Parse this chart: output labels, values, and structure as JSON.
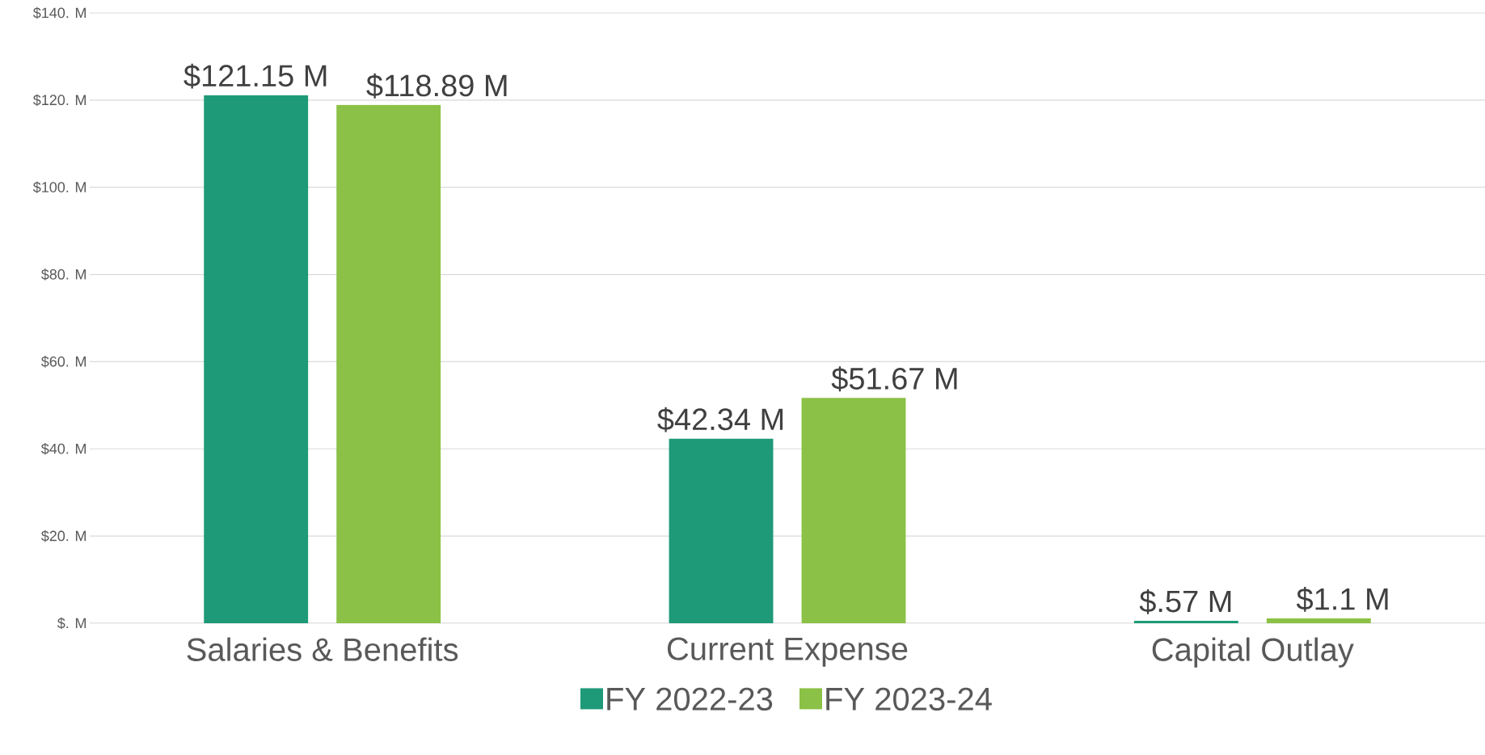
{
  "chart_data": {
    "type": "bar",
    "categories": [
      "Salaries & Benefits",
      "Current Expense",
      "Capital Outlay"
    ],
    "series": [
      {
        "name": "FY 2022-23",
        "color": "#1e9a78",
        "values": [
          121.15,
          42.34,
          0.57
        ],
        "value_labels": [
          "$121.15 M",
          "$42.34 M",
          "$.57 M"
        ]
      },
      {
        "name": "FY 2023-24",
        "color": "#8bc146",
        "values": [
          118.89,
          51.67,
          1.1
        ],
        "value_labels": [
          "$118.89 M",
          "$51.67 M",
          "$1.1 M"
        ]
      }
    ],
    "ylim": [
      0,
      140
    ],
    "yticks": [
      {
        "value": 0,
        "label": "$. M"
      },
      {
        "value": 20,
        "label": "$20. M"
      },
      {
        "value": 40,
        "label": "$40. M"
      },
      {
        "value": 60,
        "label": "$60. M"
      },
      {
        "value": 80,
        "label": "$80. M"
      },
      {
        "value": 100,
        "label": "$100. M"
      },
      {
        "value": 120,
        "label": "$120. M"
      },
      {
        "value": 140,
        "label": "$140. M"
      }
    ],
    "grid": "y",
    "legend": "bottom"
  }
}
